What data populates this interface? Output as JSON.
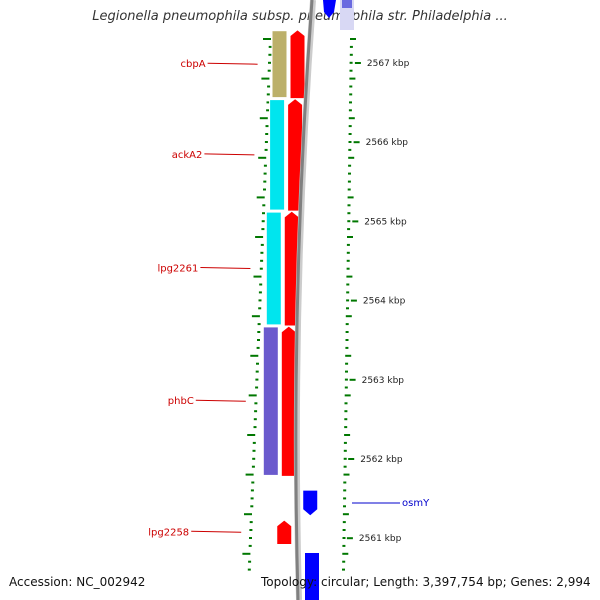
{
  "header": {
    "title": "Legionella pneumophila subsp. pneumophila str. Philadelphia ..."
  },
  "footer": {
    "accession": "Accession: NC_002942",
    "topology": "Topology: circular; Length: 3,397,754 bp; Genes: 2,994"
  },
  "colors": {
    "backbone": "#808080",
    "reverse_cds": "#ff0000",
    "forward_cds": "#0000ff",
    "cog_energy": "#bcb06a",
    "cog_cyan": "#00e5ee",
    "cog_purple": "#6a5acd",
    "tick": "#007700",
    "label_red": "#cc0000",
    "label_blue": "#0000cc"
  },
  "scale": {
    "unit": "kbp",
    "ticks": [
      {
        "kbp": 2567,
        "label": "2567 kbp"
      },
      {
        "kbp": 2566,
        "label": "2566 kbp"
      },
      {
        "kbp": 2565,
        "label": "2565 kbp"
      },
      {
        "kbp": 2564,
        "label": "2564 kbp"
      },
      {
        "kbp": 2563,
        "label": "2563 kbp"
      },
      {
        "kbp": 2562,
        "label": "2562 kbp"
      },
      {
        "kbp": 2561,
        "label": "2561 kbp"
      }
    ]
  },
  "genes": [
    {
      "name": "cbpA",
      "strand": "reverse",
      "start_kbp": 2566.55,
      "end_kbp": 2567.42,
      "cog_color": "#bcb06a",
      "label_color": "#cc0000"
    },
    {
      "name": "ackA2",
      "strand": "reverse",
      "start_kbp": 2565.13,
      "end_kbp": 2566.55,
      "cog_color": "#00e5ee",
      "label_color": "#cc0000"
    },
    {
      "name": "lpg2261",
      "strand": "reverse",
      "start_kbp": 2563.68,
      "end_kbp": 2565.13,
      "cog_color": "#00e5ee",
      "label_color": "#cc0000"
    },
    {
      "name": "phbC",
      "strand": "reverse",
      "start_kbp": 2561.78,
      "end_kbp": 2563.68,
      "cog_color": "#6a5acd",
      "label_color": "#cc0000"
    },
    {
      "name": "osmY",
      "strand": "forward",
      "start_kbp": 2561.29,
      "end_kbp": 2561.6,
      "cog_color": "",
      "label_color": "#0000cc"
    },
    {
      "name": "lpg2258",
      "strand": "reverse",
      "start_kbp": 2560.92,
      "end_kbp": 2561.23,
      "cog_color": "",
      "label_color": "#cc0000"
    }
  ]
}
